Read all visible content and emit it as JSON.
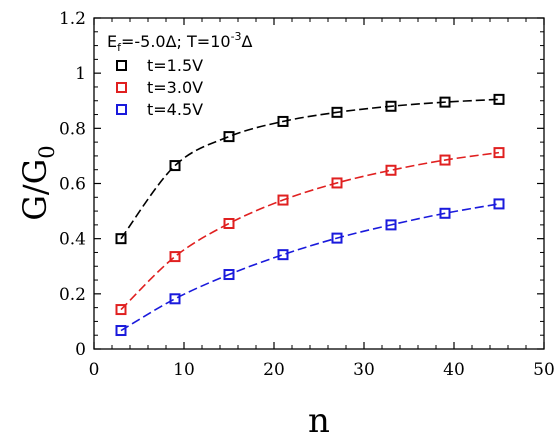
{
  "chart_data": {
    "type": "scatter",
    "xlabel": "n",
    "ylabel": "G/G",
    "ylabel_sub": "0",
    "xlim": [
      0,
      50
    ],
    "ylim": [
      0,
      1.2
    ],
    "x_ticks": [
      "0",
      "10",
      "20",
      "30",
      "40",
      "50"
    ],
    "y_ticks": [
      "0",
      "0.2",
      "0.4",
      "0.6",
      "0.8",
      "1",
      "1.2"
    ],
    "x_tick_values": [
      0,
      10,
      20,
      30,
      40,
      50
    ],
    "y_tick_values": [
      0,
      0.2,
      0.4,
      0.6,
      0.8,
      1.0,
      1.2
    ],
    "legend": {
      "placement": "top-left",
      "title_parts": {
        "a": "E",
        "a_sub": "f",
        "b": "=-5.0Δ; T=10",
        "b_sup": "-3",
        "c": "Δ"
      }
    },
    "x": [
      3,
      9,
      15,
      21,
      27,
      33,
      39,
      45
    ],
    "series": [
      {
        "name": "t=1.5V",
        "color": "#000000",
        "marker": "open-square",
        "fit": "dashed",
        "values": [
          0.4,
          0.665,
          0.77,
          0.825,
          0.858,
          0.88,
          0.895,
          0.905
        ]
      },
      {
        "name": "t=3.0V",
        "color": "#e02020",
        "marker": "open-square",
        "fit": "dashed",
        "values": [
          0.143,
          0.335,
          0.455,
          0.54,
          0.602,
          0.648,
          0.685,
          0.712
        ]
      },
      {
        "name": "t=4.5V",
        "color": "#1a1adc",
        "marker": "open-square",
        "fit": "dashed",
        "values": [
          0.067,
          0.182,
          0.27,
          0.342,
          0.402,
          0.45,
          0.492,
          0.526
        ]
      }
    ]
  }
}
